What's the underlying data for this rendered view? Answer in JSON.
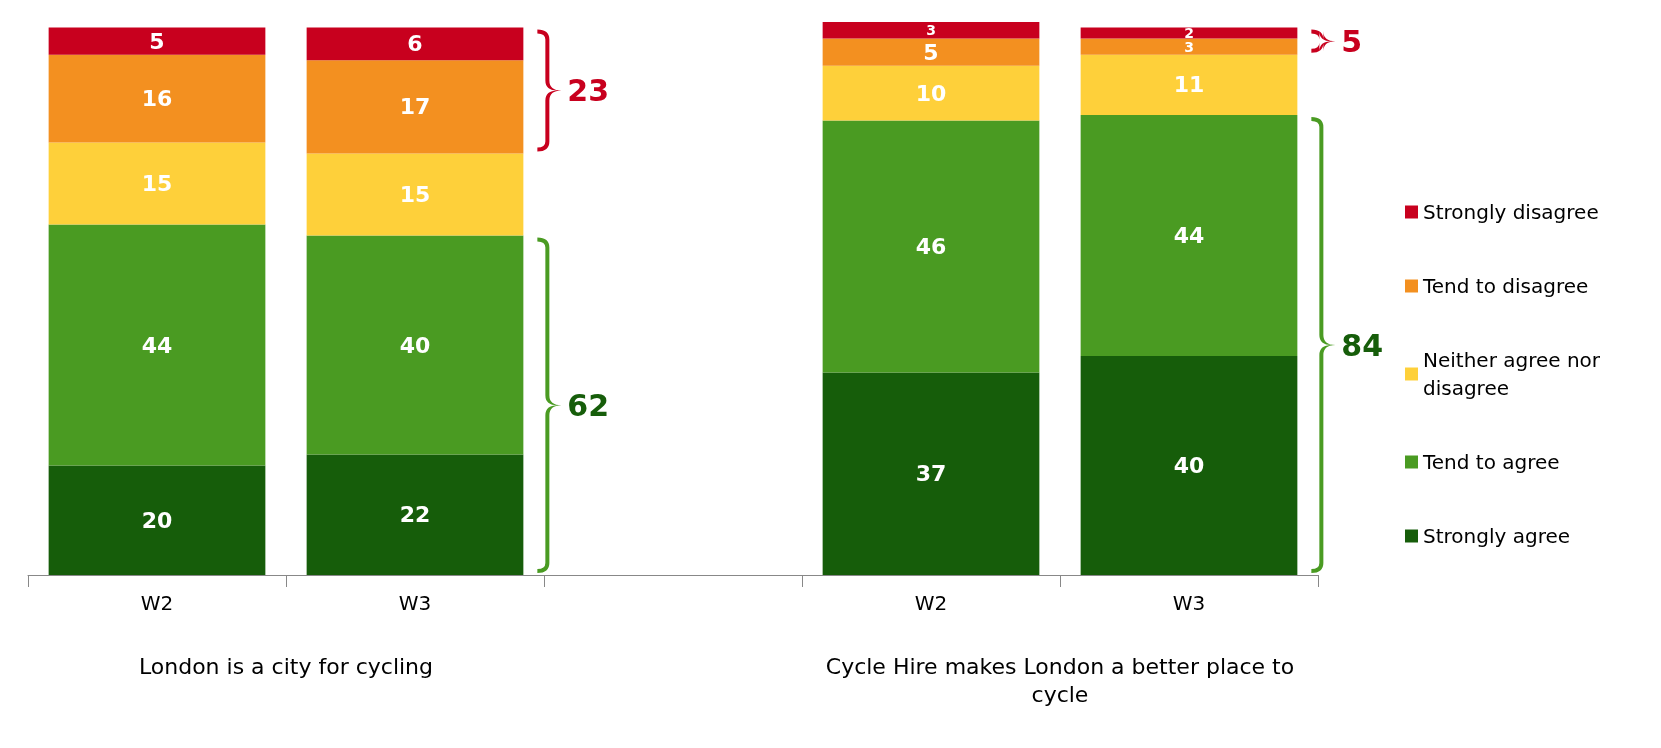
{
  "chart_data": {
    "type": "bar",
    "stacked": true,
    "data_labels": true,
    "legend": "right",
    "tick_labels": "x",
    "categories": [
      "W2",
      "W3",
      null,
      "W2",
      "W3"
    ],
    "series": [
      {
        "name": "Strongly agree",
        "color": "#165d0a",
        "values": [
          20,
          22,
          null,
          37,
          40
        ]
      },
      {
        "name": "Tend to agree",
        "color": "#4a9b22",
        "values": [
          44,
          40,
          null,
          46,
          44
        ]
      },
      {
        "name": "Neither agree nor disagree",
        "color": "#fed03a",
        "values": [
          15,
          15,
          null,
          10,
          11
        ]
      },
      {
        "name": "Tend to disagree",
        "color": "#f39020",
        "values": [
          16,
          17,
          null,
          5,
          3
        ]
      },
      {
        "name": "Strongly disagree",
        "color": "#c8001e",
        "values": [
          5,
          6,
          null,
          3,
          2
        ]
      }
    ],
    "annotations": [
      "23",
      "62",
      "5",
      "84",
      "London is a city for cycling",
      "Cycle Hire makes London a better place to cycle"
    ]
  }
}
